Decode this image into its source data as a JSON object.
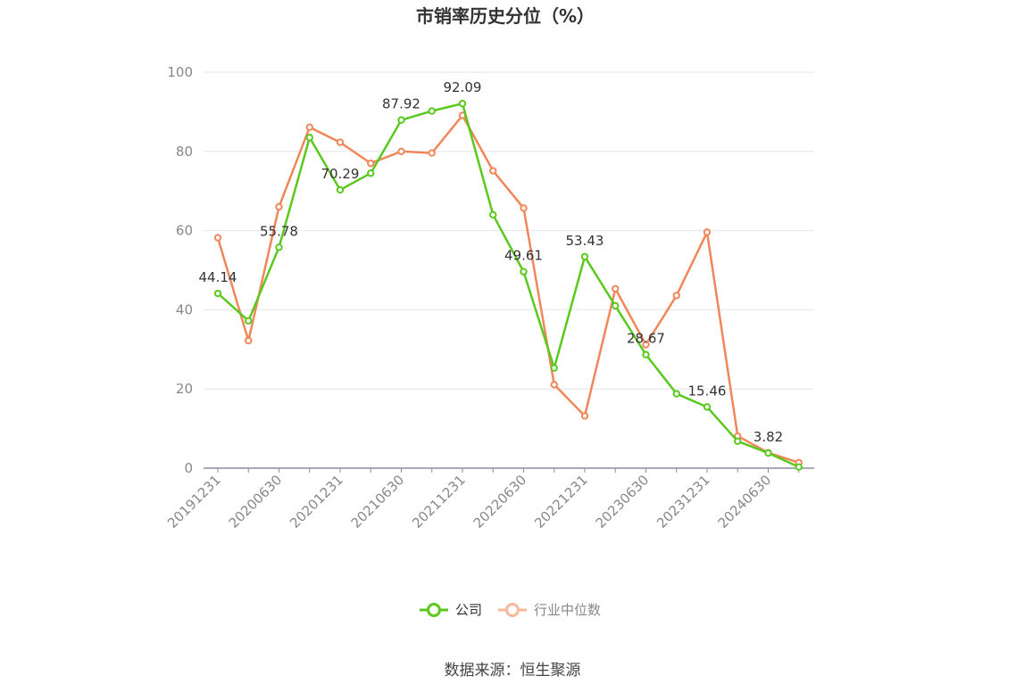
{
  "chart_data": {
    "type": "line",
    "title": "市销率历史分位（%）",
    "xlabel": "",
    "ylabel": "",
    "ylim": [
      0,
      100
    ],
    "y_ticks": [
      0,
      20,
      40,
      60,
      80,
      100
    ],
    "x": [
      "20191231",
      "20200331",
      "20200630",
      "20200930",
      "20201231",
      "20210331",
      "20210630",
      "20210930",
      "20211231",
      "20220331",
      "20220630",
      "20220930",
      "20221231",
      "20230331",
      "20230630",
      "20230930",
      "20231231",
      "20240331",
      "20240630",
      "20240930"
    ],
    "x_tick_labels": [
      "20191231",
      "20200630",
      "20201231",
      "20210630",
      "20211231",
      "20220630",
      "20221231",
      "20230630",
      "20231231",
      "20240630"
    ],
    "series": [
      {
        "name": "公司",
        "color": "#5ac91e",
        "values": [
          44.14,
          37.2,
          55.78,
          83.5,
          70.29,
          74.5,
          87.92,
          90.2,
          92.09,
          64.0,
          49.61,
          25.3,
          53.43,
          41.0,
          28.67,
          18.8,
          15.46,
          6.8,
          3.82,
          0.3
        ]
      },
      {
        "name": "行业中位数",
        "color": "#f0875a",
        "values": [
          58.2,
          32.2,
          66.0,
          86.1,
          82.3,
          77.0,
          80.0,
          79.6,
          89.1,
          75.1,
          65.7,
          21.1,
          13.2,
          45.3,
          31.2,
          43.6,
          59.6,
          8.1,
          3.9,
          1.4
        ]
      }
    ],
    "data_labels": [
      {
        "index": 0,
        "text": "44.14"
      },
      {
        "index": 2,
        "text": "55.78"
      },
      {
        "index": 4,
        "text": "70.29"
      },
      {
        "index": 6,
        "text": "87.92"
      },
      {
        "index": 8,
        "text": "92.09"
      },
      {
        "index": 10,
        "text": "49.61"
      },
      {
        "index": 12,
        "text": "53.43"
      },
      {
        "index": 14,
        "text": "28.67"
      },
      {
        "index": 16,
        "text": "15.46"
      },
      {
        "index": 18,
        "text": "3.82"
      }
    ],
    "grid": true,
    "legend_position": "bottom-center"
  },
  "legend": [
    {
      "label": "公司",
      "color": "#5ac91e",
      "text_color": "#333333"
    },
    {
      "label": "行业中位数",
      "color": "#f8b89a",
      "text_color": "#888888"
    }
  ],
  "source": "数据来源：恒生聚源"
}
